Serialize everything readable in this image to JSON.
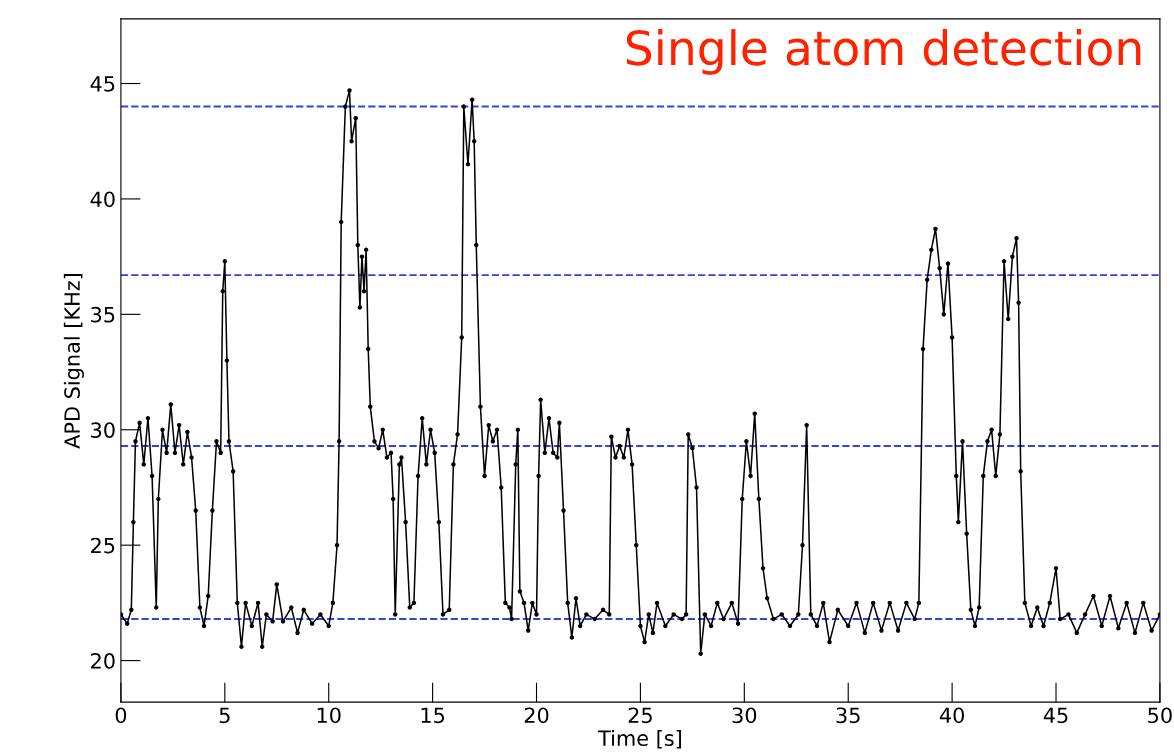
{
  "chart_data": {
    "type": "line",
    "title": "Single atom detection",
    "xlabel": "Time [s]",
    "ylabel": "APD Signal [KHz]",
    "xlim": [
      0,
      50
    ],
    "ylim": [
      18.2,
      47.8
    ],
    "xticks": [
      0,
      5,
      10,
      15,
      20,
      25,
      30,
      35,
      40,
      45,
      50
    ],
    "yticks": [
      20,
      25,
      30,
      35,
      40,
      45
    ],
    "grid": false,
    "marker": "circle",
    "line_style": "solid",
    "ref_lines": [
      {
        "axis": "y",
        "value": 44.0,
        "color": "#3344dd",
        "line_style": "dashed"
      },
      {
        "axis": "y",
        "value": 36.7,
        "color": "#3344dd",
        "line_style": "dashed"
      },
      {
        "axis": "y",
        "value": 29.3,
        "color": "#3344dd",
        "line_style": "dashed"
      },
      {
        "axis": "y",
        "value": 21.8,
        "color": "#3344dd",
        "line_style": "dashed"
      }
    ],
    "series": [
      {
        "color": "#000000",
        "x": [
          0,
          0.3,
          0.5,
          0.6,
          0.7,
          0.9,
          1.1,
          1.3,
          1.5,
          1.7,
          1.8,
          2.0,
          2.2,
          2.4,
          2.6,
          2.8,
          3.0,
          3.2,
          3.4,
          3.6,
          3.8,
          4.0,
          4.2,
          4.4,
          4.6,
          4.8,
          4.9,
          5.0,
          5.1,
          5.2,
          5.4,
          5.6,
          5.8,
          6.0,
          6.3,
          6.6,
          6.8,
          7.0,
          7.3,
          7.5,
          7.8,
          8.2,
          8.5,
          8.8,
          9.2,
          9.6,
          10.0,
          10.2,
          10.4,
          10.5,
          10.6,
          10.8,
          11.0,
          11.1,
          11.3,
          11.4,
          11.5,
          11.6,
          11.7,
          11.8,
          11.9,
          12.0,
          12.2,
          12.4,
          12.6,
          12.8,
          13.0,
          13.1,
          13.2,
          13.4,
          13.5,
          13.7,
          13.9,
          14.1,
          14.3,
          14.5,
          14.7,
          14.9,
          15.1,
          15.3,
          15.5,
          15.8,
          16.0,
          16.2,
          16.4,
          16.5,
          16.7,
          16.9,
          17.0,
          17.1,
          17.3,
          17.5,
          17.7,
          17.9,
          18.1,
          18.3,
          18.5,
          18.7,
          18.8,
          19.0,
          19.1,
          19.2,
          19.4,
          19.6,
          19.8,
          20.0,
          20.1,
          20.2,
          20.4,
          20.6,
          20.8,
          21.0,
          21.1,
          21.3,
          21.5,
          21.7,
          21.9,
          22.1,
          22.4,
          22.8,
          23.2,
          23.5,
          23.6,
          23.8,
          24.0,
          24.2,
          24.4,
          24.6,
          24.8,
          25.0,
          25.2,
          25.4,
          25.6,
          25.8,
          26.2,
          26.6,
          27.0,
          27.2,
          27.3,
          27.5,
          27.7,
          27.9,
          28.1,
          28.4,
          28.7,
          29.0,
          29.4,
          29.7,
          29.9,
          30.1,
          30.3,
          30.5,
          30.7,
          30.9,
          31.1,
          31.4,
          31.8,
          32.2,
          32.6,
          32.8,
          33.0,
          33.2,
          33.5,
          33.8,
          34.1,
          34.5,
          35.0,
          35.4,
          35.8,
          36.2,
          36.6,
          37.0,
          37.4,
          37.8,
          38.2,
          38.4,
          38.6,
          38.8,
          39.0,
          39.2,
          39.4,
          39.6,
          39.8,
          40.0,
          40.2,
          40.3,
          40.5,
          40.7,
          40.9,
          41.1,
          41.3,
          41.5,
          41.7,
          41.9,
          42.1,
          42.3,
          42.5,
          42.7,
          42.9,
          43.1,
          43.2,
          43.3,
          43.5,
          43.8,
          44.1,
          44.4,
          44.7,
          45.0,
          45.2,
          45.6,
          46.0,
          46.4,
          46.8,
          47.2,
          47.6,
          48.0,
          48.4,
          48.8,
          49.2,
          49.6,
          50.0
        ],
        "values": [
          22.0,
          21.6,
          22.2,
          26,
          29.5,
          30.3,
          28.5,
          30.5,
          28,
          22.3,
          27,
          30,
          29,
          31.1,
          29,
          30.2,
          28.5,
          29.9,
          28.8,
          26.5,
          22.3,
          21.5,
          22.8,
          26.5,
          29.5,
          29,
          36,
          37.3,
          33,
          29.5,
          28.2,
          22.5,
          20.6,
          22.5,
          21.5,
          22.5,
          20.6,
          22,
          21.7,
          23.3,
          21.7,
          22.3,
          21.2,
          22.2,
          21.6,
          22,
          21.5,
          22.5,
          25,
          29.5,
          39,
          44,
          44.7,
          42.5,
          43.5,
          38,
          35.3,
          37.5,
          36,
          37.8,
          33.5,
          31,
          29.5,
          29.2,
          30,
          28.8,
          29,
          27,
          22,
          28.5,
          28.8,
          26,
          22.3,
          22.5,
          28,
          30.5,
          28.5,
          30,
          29,
          26,
          22,
          22.2,
          28.5,
          29.8,
          34,
          44,
          41.5,
          44.3,
          42.5,
          38,
          31,
          28,
          30.2,
          29.5,
          30,
          27.5,
          22.5,
          22.3,
          21.8,
          28.5,
          30,
          23,
          22.5,
          21.3,
          22.5,
          22,
          28,
          31.3,
          29,
          30.5,
          29,
          28.8,
          30.3,
          26.5,
          22.5,
          21,
          22.7,
          21.5,
          22,
          21.8,
          22.2,
          22,
          29.7,
          28.8,
          29.3,
          28.8,
          30,
          28.5,
          25,
          21.5,
          20.8,
          22,
          21.2,
          22.5,
          21.5,
          22,
          21.8,
          22,
          29.8,
          29.2,
          27.5,
          20.3,
          22,
          21.5,
          22.5,
          21.8,
          22.5,
          21.6,
          27,
          29.5,
          28,
          30.7,
          27,
          24,
          22.7,
          21.8,
          22,
          21.5,
          22,
          25,
          30.2,
          22,
          21.5,
          22.5,
          20.8,
          22.2,
          21.5,
          22.5,
          21.2,
          22.5,
          21.3,
          22.5,
          21.3,
          22.5,
          21.8,
          22.5,
          33.5,
          36.5,
          37.8,
          38.7,
          37,
          35,
          37.2,
          34,
          28,
          26,
          29.5,
          25.5,
          22.2,
          21.5,
          22.3,
          28,
          29.5,
          30,
          28,
          29.8,
          37.3,
          34.8,
          37.5,
          38.3,
          35.5,
          28.2,
          22.5,
          21.5,
          22.3,
          21.5,
          22.5,
          24,
          21.8,
          22,
          21.2,
          22,
          22.8,
          21.5,
          22.8,
          21.4,
          22.5,
          21.2,
          22.5,
          21.3,
          22
        ]
      }
    ]
  }
}
